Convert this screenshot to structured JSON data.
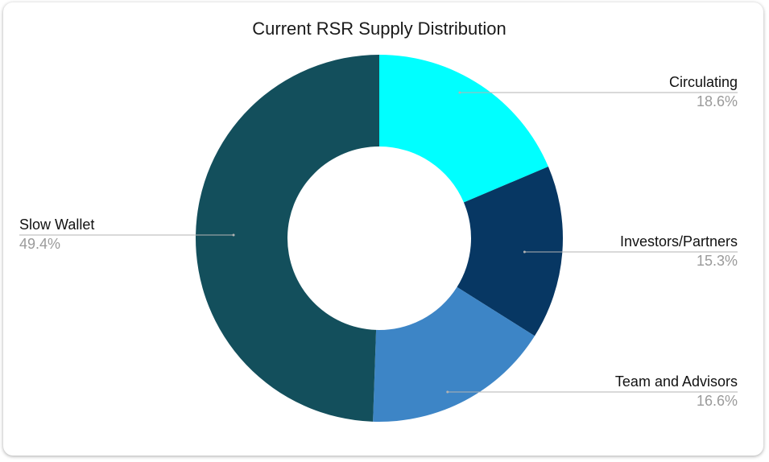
{
  "chart_data": {
    "type": "pie",
    "title": "Current RSR Supply Distribution",
    "donut": true,
    "slices": [
      {
        "label": "Circulating",
        "value": 18.6,
        "display": "18.6%",
        "color": "#00ffff"
      },
      {
        "label": "Investors/Partners",
        "value": 15.3,
        "display": "15.3%",
        "color": "#073763"
      },
      {
        "label": "Team and Advisors",
        "value": 16.6,
        "display": "16.6%",
        "color": "#3d85c6"
      },
      {
        "label": "Slow Wallet",
        "value": 49.4,
        "display": "49.4%",
        "color": "#134f5c"
      }
    ]
  }
}
